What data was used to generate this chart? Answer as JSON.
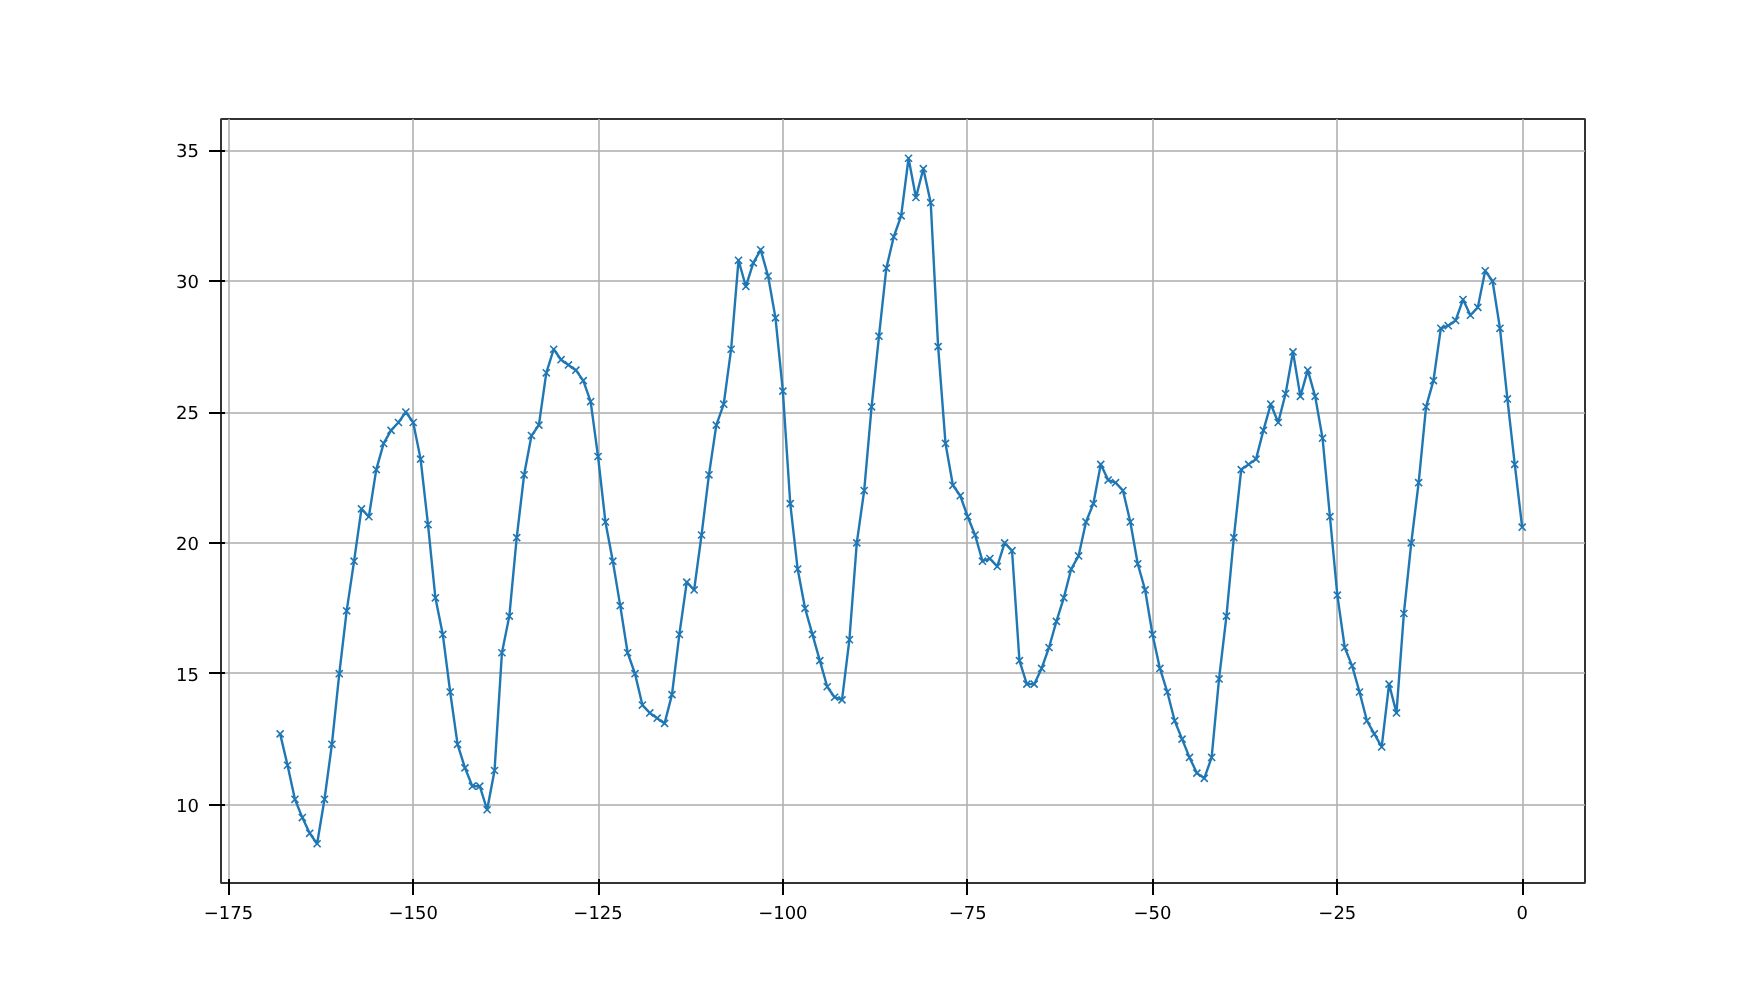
{
  "chart_data": {
    "type": "line",
    "marker": "cross",
    "line_style": "solid",
    "grid": true,
    "xlim": [
      -176,
      8.5
    ],
    "ylim": [
      7,
      36.2
    ],
    "xticks": [
      -175,
      -150,
      -125,
      -100,
      -75,
      -50,
      -25,
      0
    ],
    "yticks": [
      10,
      15,
      20,
      25,
      30,
      35
    ],
    "x": [
      -168,
      -167,
      -166,
      -165,
      -164,
      -163,
      -162,
      -161,
      -160,
      -159,
      -158,
      -157,
      -156,
      -155,
      -154,
      -153,
      -152,
      -151,
      -150,
      -149,
      -148,
      -147,
      -146,
      -145,
      -144,
      -143,
      -142,
      -141,
      -140,
      -139,
      -138,
      -137,
      -136,
      -135,
      -134,
      -133,
      -132,
      -131,
      -130,
      -129,
      -128,
      -127,
      -126,
      -125,
      -124,
      -123,
      -122,
      -121,
      -120,
      -119,
      -118,
      -117,
      -116,
      -115,
      -114,
      -113,
      -112,
      -111,
      -110,
      -109,
      -108,
      -107,
      -106,
      -105,
      -104,
      -103,
      -102,
      -101,
      -100,
      -99,
      -98,
      -97,
      -96,
      -95,
      -94,
      -93,
      -92,
      -91,
      -90,
      -89,
      -88,
      -87,
      -86,
      -85,
      -84,
      -83,
      -82,
      -81,
      -80,
      -79,
      -78,
      -77,
      -76,
      -75,
      -74,
      -73,
      -72,
      -71,
      -70,
      -69,
      -68,
      -67,
      -66,
      -65,
      -64,
      -63,
      -62,
      -61,
      -60,
      -59,
      -58,
      -57,
      -56,
      -55,
      -54,
      -53,
      -52,
      -51,
      -50,
      -49,
      -48,
      -47,
      -46,
      -45,
      -44,
      -43,
      -42,
      -41,
      -40,
      -39,
      -38,
      -37,
      -36,
      -35,
      -34,
      -33,
      -32,
      -31,
      -30,
      -29,
      -28,
      -27,
      -26,
      -25,
      -24,
      -23,
      -22,
      -21,
      -20,
      -19,
      -18,
      -17,
      -16,
      -15,
      -14,
      -13,
      -12,
      -11,
      -10,
      -9,
      -8,
      -7,
      -6,
      -5,
      -4,
      -3,
      -2,
      -1,
      0
    ],
    "series": [
      {
        "color": "#1f77b4",
        "values": [
          12.7,
          11.5,
          10.2,
          9.5,
          8.9,
          8.5,
          10.2,
          12.3,
          15,
          17.4,
          19.3,
          21.3,
          21,
          22.8,
          23.8,
          24.3,
          24.6,
          25,
          24.6,
          23.2,
          20.7,
          17.9,
          16.5,
          14.3,
          12.3,
          11.4,
          10.7,
          10.7,
          9.8,
          11.3,
          15.8,
          17.2,
          20.2,
          22.6,
          24.1,
          24.5,
          26.5,
          27.4,
          27,
          26.8,
          26.6,
          26.2,
          25.4,
          23.3,
          20.8,
          19.3,
          17.6,
          15.8,
          15,
          13.8,
          13.5,
          13.3,
          13.1,
          14.2,
          16.5,
          18.5,
          18.2,
          20.3,
          22.6,
          24.5,
          25.3,
          27.4,
          30.8,
          29.8,
          30.7,
          31.2,
          30.2,
          28.6,
          25.8,
          21.5,
          19,
          17.5,
          16.5,
          15.5,
          14.5,
          14.1,
          14,
          16.3,
          20,
          22,
          25.2,
          27.9,
          30.5,
          31.7,
          32.5,
          34.7,
          33.2,
          34.3,
          33,
          27.5,
          23.8,
          22.2,
          21.8,
          21,
          20.3,
          19.3,
          19.4,
          19.1,
          20,
          19.7,
          15.5,
          14.6,
          14.6,
          15.2,
          16,
          17,
          17.9,
          19,
          19.5,
          20.8,
          21.5,
          23,
          22.4,
          22.3,
          22,
          20.8,
          19.2,
          18.2,
          16.5,
          15.2,
          14.3,
          13.2,
          12.5,
          11.8,
          11.2,
          11,
          11.8,
          14.8,
          17.2,
          20.2,
          22.8,
          23,
          23.2,
          24.3,
          25.3,
          24.6,
          25.7,
          27.3,
          25.6,
          26.6,
          25.6,
          24,
          21,
          18,
          16,
          15.3,
          14.3,
          13.2,
          12.7,
          12.2,
          14.6,
          13.5,
          17.3,
          20,
          22.3,
          25.2,
          26.2,
          28.2,
          28.3,
          28.5,
          29.3,
          28.7,
          29,
          30.4,
          30,
          28.2,
          25.5,
          23,
          20.6
        ]
      }
    ]
  }
}
